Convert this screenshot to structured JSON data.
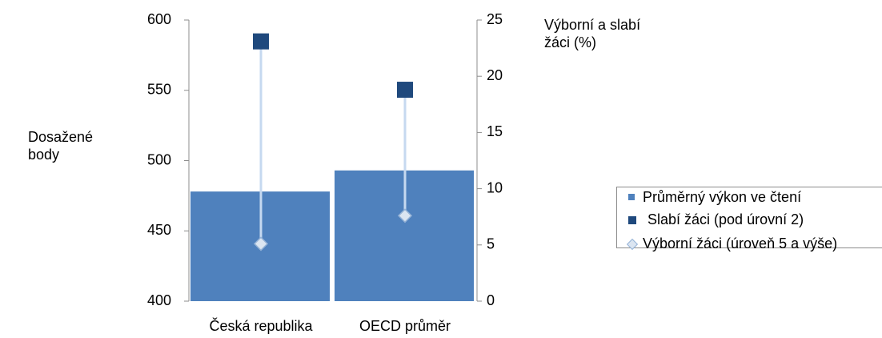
{
  "chart_data": {
    "type": "bar",
    "categories": [
      "Česká republika",
      "OECD průměr"
    ],
    "ylabel": "Dosažené body",
    "y2label": "Výborní a slabí žáci (%)",
    "series": [
      {
        "name": "Průměrný výkon ve čtení",
        "color": "#4f81bd",
        "values": [
          478,
          493
        ]
      },
      {
        "name": "Slabí žáci (pod úrovní 2)",
        "color": "#1f497d",
        "axis": "y2",
        "marker": "square",
        "values": [
          23.1,
          18.8
        ]
      },
      {
        "name": "Výborní žáci (úroveň 5 a výše)",
        "color": "#dbe5f1",
        "axis": "y2",
        "marker": "diamond",
        "values": [
          5.1,
          7.6
        ]
      }
    ],
    "ylim": [
      400,
      600
    ],
    "yticks": [
      400,
      450,
      500,
      550,
      600
    ],
    "y2lim": [
      0,
      25
    ],
    "y2ticks": [
      0,
      5,
      10,
      15,
      20,
      25
    ],
    "legend": "right"
  }
}
